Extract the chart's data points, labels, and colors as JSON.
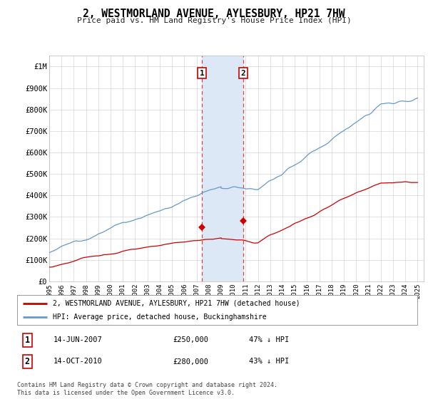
{
  "title": "2, WESTMORLAND AVENUE, AYLESBURY, HP21 7HW",
  "subtitle": "Price paid vs. HM Land Registry's House Price Index (HPI)",
  "ylim": [
    0,
    1050000
  ],
  "yticks": [
    0,
    100000,
    200000,
    300000,
    400000,
    500000,
    600000,
    700000,
    800000,
    900000,
    1000000
  ],
  "ytick_labels": [
    "£0",
    "£100K",
    "£200K",
    "£300K",
    "£400K",
    "£500K",
    "£600K",
    "£700K",
    "£800K",
    "£900K",
    "£1M"
  ],
  "xlim_start": 1995.0,
  "xlim_end": 2025.5,
  "transaction1_date": 2007.45,
  "transaction1_price": 250000,
  "transaction2_date": 2010.79,
  "transaction2_price": 280000,
  "red_line_color": "#cc0000",
  "blue_line_color": "#6699cc",
  "marker_fill": "#cc0000",
  "vline_color": "#dd4444",
  "shade_color": "#dce8f5",
  "legend_label_red": "2, WESTMORLAND AVENUE, AYLESBURY, HP21 7HW (detached house)",
  "legend_label_blue": "HPI: Average price, detached house, Buckinghamshire",
  "table_row1": [
    "1",
    "14-JUN-2007",
    "£250,000",
    "47% ↓ HPI"
  ],
  "table_row2": [
    "2",
    "14-OCT-2010",
    "£280,000",
    "43% ↓ HPI"
  ],
  "footer": "Contains HM Land Registry data © Crown copyright and database right 2024.\nThis data is licensed under the Open Government Licence v3.0.",
  "background_color": "#ffffff",
  "grid_color": "#cccccc"
}
